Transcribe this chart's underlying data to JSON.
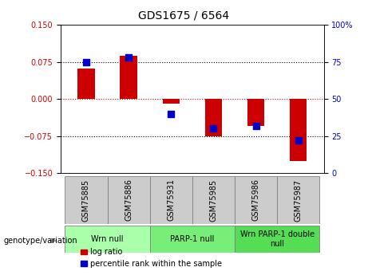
{
  "title": "GDS1675 / 6564",
  "samples": [
    "GSM75885",
    "GSM75886",
    "GSM75931",
    "GSM75985",
    "GSM75986",
    "GSM75987"
  ],
  "log_ratio": [
    0.061,
    0.088,
    -0.01,
    -0.075,
    -0.055,
    -0.125
  ],
  "percentile_rank": [
    75,
    78,
    40,
    30,
    32,
    22
  ],
  "ylim_left": [
    -0.15,
    0.15
  ],
  "ylim_right": [
    0,
    100
  ],
  "yticks_left": [
    -0.15,
    -0.075,
    0,
    0.075,
    0.15
  ],
  "yticks_right": [
    0,
    25,
    50,
    75,
    100
  ],
  "bar_color": "#cc0000",
  "dot_color": "#0000cc",
  "bar_width": 0.4,
  "dot_size": 40,
  "groups": [
    {
      "label": "Wrn null",
      "color": "#aaffaa",
      "start": 0,
      "end": 2
    },
    {
      "label": "PARP-1 null",
      "color": "#77ee77",
      "start": 2,
      "end": 4
    },
    {
      "label": "Wrn PARP-1 double\nnull",
      "color": "#55dd55",
      "start": 4,
      "end": 6
    }
  ],
  "legend_labels": [
    "log ratio",
    "percentile rank within the sample"
  ],
  "legend_colors": [
    "#cc0000",
    "#0000cc"
  ],
  "zero_line_color": "#cc0000",
  "grid_dotted_color": "#000000",
  "sample_box_color": "#cccccc",
  "title_fontsize": 10,
  "tick_fontsize": 7,
  "label_fontsize": 7
}
